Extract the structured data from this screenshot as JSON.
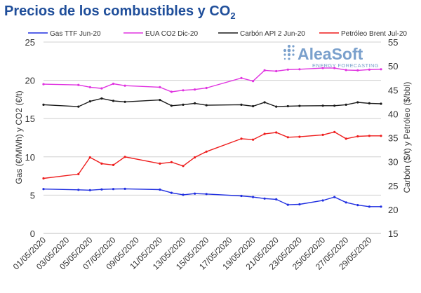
{
  "chart_data": {
    "type": "line",
    "title": "Precios de los combustibles  y CO",
    "title_subscript": "2",
    "y_left_label": "Gas (€/MWh) y CO2 (€/t)",
    "y_right_label": "Carbón ($/t) y Petróleo ($/bbl)",
    "y_left_lim": [
      0,
      25
    ],
    "y_left_ticks": [
      "0",
      "5",
      "10",
      "15",
      "20",
      "25"
    ],
    "y_right_lim": [
      15,
      55
    ],
    "y_right_ticks": [
      "15",
      "20",
      "25",
      "30",
      "35",
      "40",
      "45",
      "50",
      "55"
    ],
    "x_ticks": [
      "01/05/2020",
      "03/05/2020",
      "05/05/2020",
      "07/05/2020",
      "09/05/2020",
      "11/05/2020",
      "13/05/2020",
      "15/05/2020",
      "17/05/2020",
      "19/05/2020",
      "21/05/2020",
      "23/05/2020",
      "25/05/2020",
      "27/05/2020",
      "29/05/2020"
    ],
    "grid": true,
    "legend_position": "top",
    "series": [
      {
        "name": "Gas TTF Jun-20",
        "axis": "left",
        "color": "#1f2ee0",
        "points": [
          [
            "01/05/2020",
            5.8
          ],
          [
            "04/05/2020",
            5.7
          ],
          [
            "05/05/2020",
            5.65
          ],
          [
            "06/05/2020",
            5.75
          ],
          [
            "07/05/2020",
            5.8
          ],
          [
            "08/05/2020",
            5.82
          ],
          [
            "11/05/2020",
            5.72
          ],
          [
            "12/05/2020",
            5.3
          ],
          [
            "13/05/2020",
            5.05
          ],
          [
            "14/05/2020",
            5.2
          ],
          [
            "15/05/2020",
            5.15
          ],
          [
            "18/05/2020",
            4.9
          ],
          [
            "19/05/2020",
            4.75
          ],
          [
            "20/05/2020",
            4.55
          ],
          [
            "21/05/2020",
            4.45
          ],
          [
            "22/05/2020",
            3.75
          ],
          [
            "23/05/2020",
            3.8
          ],
          [
            "25/05/2020",
            4.3
          ],
          [
            "26/05/2020",
            4.75
          ],
          [
            "27/05/2020",
            4.05
          ],
          [
            "28/05/2020",
            3.7
          ],
          [
            "29/05/2020",
            3.5
          ],
          [
            "30/05/2020",
            3.5
          ]
        ]
      },
      {
        "name": "EUA CO2 Dic-20",
        "axis": "left",
        "color": "#e033e0",
        "points": [
          [
            "01/05/2020",
            19.5
          ],
          [
            "04/05/2020",
            19.4
          ],
          [
            "05/05/2020",
            19.1
          ],
          [
            "06/05/2020",
            18.95
          ],
          [
            "07/05/2020",
            19.55
          ],
          [
            "08/05/2020",
            19.3
          ],
          [
            "11/05/2020",
            19.1
          ],
          [
            "12/05/2020",
            18.5
          ],
          [
            "13/05/2020",
            18.7
          ],
          [
            "14/05/2020",
            18.8
          ],
          [
            "15/05/2020",
            19.0
          ],
          [
            "18/05/2020",
            20.3
          ],
          [
            "19/05/2020",
            19.9
          ],
          [
            "20/05/2020",
            21.3
          ],
          [
            "21/05/2020",
            21.2
          ],
          [
            "22/05/2020",
            21.4
          ],
          [
            "23/05/2020",
            21.45
          ],
          [
            "25/05/2020",
            21.6
          ],
          [
            "26/05/2020",
            21.6
          ],
          [
            "27/05/2020",
            21.35
          ],
          [
            "28/05/2020",
            21.3
          ],
          [
            "29/05/2020",
            21.4
          ],
          [
            "30/05/2020",
            21.45
          ]
        ]
      },
      {
        "name": "Carbón API 2 Jun-20",
        "axis": "right",
        "color": "#1a1a1a",
        "points": [
          [
            "01/05/2020",
            41.9
          ],
          [
            "04/05/2020",
            41.5
          ],
          [
            "05/05/2020",
            42.6
          ],
          [
            "06/05/2020",
            43.2
          ],
          [
            "07/05/2020",
            42.7
          ],
          [
            "08/05/2020",
            42.5
          ],
          [
            "11/05/2020",
            42.9
          ],
          [
            "12/05/2020",
            41.7
          ],
          [
            "13/05/2020",
            41.9
          ],
          [
            "14/05/2020",
            42.2
          ],
          [
            "15/05/2020",
            41.8
          ],
          [
            "18/05/2020",
            41.9
          ],
          [
            "19/05/2020",
            41.6
          ],
          [
            "20/05/2020",
            42.4
          ],
          [
            "21/05/2020",
            41.5
          ],
          [
            "22/05/2020",
            41.6
          ],
          [
            "23/05/2020",
            41.65
          ],
          [
            "25/05/2020",
            41.7
          ],
          [
            "26/05/2020",
            41.7
          ],
          [
            "27/05/2020",
            41.9
          ],
          [
            "28/05/2020",
            42.4
          ],
          [
            "29/05/2020",
            42.2
          ],
          [
            "30/05/2020",
            42.1
          ]
        ]
      },
      {
        "name": "Petróleo Brent Jul-20",
        "axis": "right",
        "color": "#ee1c1c",
        "points": [
          [
            "01/05/2020",
            26.5
          ],
          [
            "04/05/2020",
            27.4
          ],
          [
            "05/05/2020",
            30.9
          ],
          [
            "06/05/2020",
            29.6
          ],
          [
            "07/05/2020",
            29.3
          ],
          [
            "08/05/2020",
            31.0
          ],
          [
            "11/05/2020",
            29.6
          ],
          [
            "12/05/2020",
            29.9
          ],
          [
            "13/05/2020",
            29.1
          ],
          [
            "14/05/2020",
            30.9
          ],
          [
            "15/05/2020",
            32.1
          ],
          [
            "18/05/2020",
            34.8
          ],
          [
            "19/05/2020",
            34.6
          ],
          [
            "20/05/2020",
            35.8
          ],
          [
            "21/05/2020",
            36.1
          ],
          [
            "22/05/2020",
            35.1
          ],
          [
            "23/05/2020",
            35.2
          ],
          [
            "25/05/2020",
            35.6
          ],
          [
            "26/05/2020",
            36.2
          ],
          [
            "27/05/2020",
            34.8
          ],
          [
            "28/05/2020",
            35.3
          ],
          [
            "29/05/2020",
            35.4
          ],
          [
            "30/05/2020",
            35.4
          ]
        ]
      }
    ]
  },
  "logo": {
    "brand": "AleaSoft",
    "tagline": "ENERGY FORECASTING",
    "color": "#7aa0cc"
  }
}
